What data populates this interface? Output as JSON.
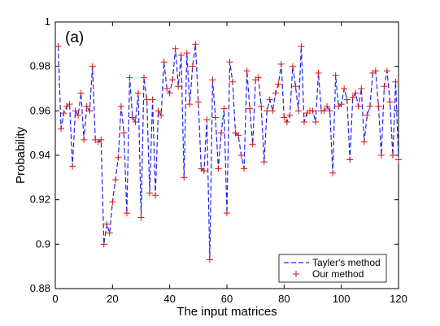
{
  "chart_data": {
    "type": "line",
    "panel_label": "(a)",
    "xlabel": "The input matrices",
    "ylabel": "Probability",
    "xlim": [
      0,
      120
    ],
    "ylim": [
      0.88,
      1.0
    ],
    "xticks": [
      0,
      20,
      40,
      60,
      80,
      100,
      120
    ],
    "yticks": [
      0.88,
      0.9,
      0.92,
      0.94,
      0.96,
      0.98,
      1
    ],
    "ytick_labels": [
      "0.88",
      "0.9",
      "0.92",
      "0.94",
      "0.96",
      "0.98",
      "1"
    ],
    "grid": false,
    "legend_position": "bottom-right",
    "x": [
      1,
      2,
      3,
      4,
      5,
      6,
      7,
      8,
      9,
      10,
      11,
      12,
      13,
      14,
      15,
      16,
      17,
      18,
      19,
      20,
      21,
      22,
      23,
      24,
      25,
      26,
      27,
      28,
      29,
      30,
      31,
      32,
      33,
      34,
      35,
      36,
      37,
      38,
      39,
      40,
      41,
      42,
      43,
      44,
      45,
      46,
      47,
      48,
      49,
      50,
      51,
      52,
      53,
      54,
      55,
      56,
      57,
      58,
      59,
      60,
      61,
      62,
      63,
      64,
      65,
      66,
      67,
      68,
      69,
      70,
      71,
      72,
      73,
      74,
      75,
      76,
      77,
      78,
      79,
      80,
      81,
      82,
      83,
      84,
      85,
      86,
      87,
      88,
      89,
      90,
      91,
      92,
      93,
      94,
      95,
      96,
      97,
      98,
      99,
      100,
      101,
      102,
      103,
      104,
      105,
      106,
      107,
      108,
      109,
      110,
      111,
      112,
      113,
      114,
      115,
      116,
      117,
      118,
      119,
      120
    ],
    "series": [
      {
        "name": "Tayler's method",
        "style": "dashed-line",
        "color": "#2222ee",
        "values": [
          0.989,
          0.952,
          0.959,
          0.962,
          0.963,
          0.935,
          0.96,
          0.958,
          0.968,
          0.947,
          0.962,
          0.96,
          0.98,
          0.947,
          0.946,
          0.947,
          0.9,
          0.909,
          0.905,
          0.919,
          0.929,
          0.939,
          0.962,
          0.95,
          0.914,
          0.975,
          0.957,
          0.955,
          0.968,
          0.912,
          0.975,
          0.965,
          0.923,
          0.965,
          0.922,
          0.96,
          0.958,
          0.982,
          0.97,
          0.968,
          0.974,
          0.988,
          0.971,
          0.985,
          0.93,
          0.986,
          0.963,
          0.98,
          0.99,
          0.964,
          0.934,
          0.933,
          0.956,
          0.893,
          0.974,
          0.957,
          0.934,
          0.95,
          0.961,
          0.914,
          0.982,
          0.973,
          0.95,
          0.949,
          0.94,
          0.934,
          0.978,
          0.961,
          0.945,
          0.974,
          0.975,
          0.962,
          0.937,
          0.96,
          0.965,
          0.96,
          0.968,
          0.972,
          0.981,
          0.957,
          0.955,
          0.958,
          0.98,
          0.971,
          0.96,
          0.989,
          0.955,
          0.959,
          0.96,
          0.96,
          0.955,
          0.977,
          0.96,
          0.96,
          0.962,
          0.96,
          0.932,
          0.976,
          0.962,
          0.963,
          0.97,
          0.965,
          0.938,
          0.966,
          0.968,
          0.962,
          0.97,
          0.946,
          0.958,
          0.962,
          0.977,
          0.978,
          0.962,
          0.94,
          0.971,
          0.978,
          0.964,
          0.94,
          0.973,
          0.938
        ]
      },
      {
        "name": "Our method",
        "style": "plus-markers",
        "color": "#dd1111",
        "values": [
          0.989,
          0.952,
          0.959,
          0.962,
          0.963,
          0.935,
          0.96,
          0.958,
          0.968,
          0.947,
          0.962,
          0.96,
          0.98,
          0.947,
          0.946,
          0.947,
          0.9,
          0.909,
          0.905,
          0.919,
          0.929,
          0.939,
          0.962,
          0.95,
          0.914,
          0.975,
          0.957,
          0.955,
          0.968,
          0.912,
          0.975,
          0.965,
          0.923,
          0.965,
          0.922,
          0.96,
          0.958,
          0.982,
          0.97,
          0.968,
          0.974,
          0.988,
          0.971,
          0.985,
          0.93,
          0.986,
          0.963,
          0.98,
          0.99,
          0.964,
          0.934,
          0.933,
          0.956,
          0.893,
          0.974,
          0.957,
          0.934,
          0.95,
          0.961,
          0.914,
          0.982,
          0.973,
          0.95,
          0.949,
          0.94,
          0.934,
          0.978,
          0.961,
          0.945,
          0.974,
          0.975,
          0.962,
          0.937,
          0.96,
          0.965,
          0.96,
          0.968,
          0.972,
          0.981,
          0.957,
          0.955,
          0.958,
          0.98,
          0.971,
          0.96,
          0.989,
          0.955,
          0.959,
          0.96,
          0.96,
          0.955,
          0.977,
          0.96,
          0.96,
          0.962,
          0.96,
          0.932,
          0.976,
          0.962,
          0.963,
          0.97,
          0.965,
          0.938,
          0.966,
          0.968,
          0.962,
          0.97,
          0.946,
          0.958,
          0.962,
          0.977,
          0.978,
          0.962,
          0.94,
          0.971,
          0.978,
          0.964,
          0.94,
          0.973,
          0.938
        ]
      }
    ]
  }
}
